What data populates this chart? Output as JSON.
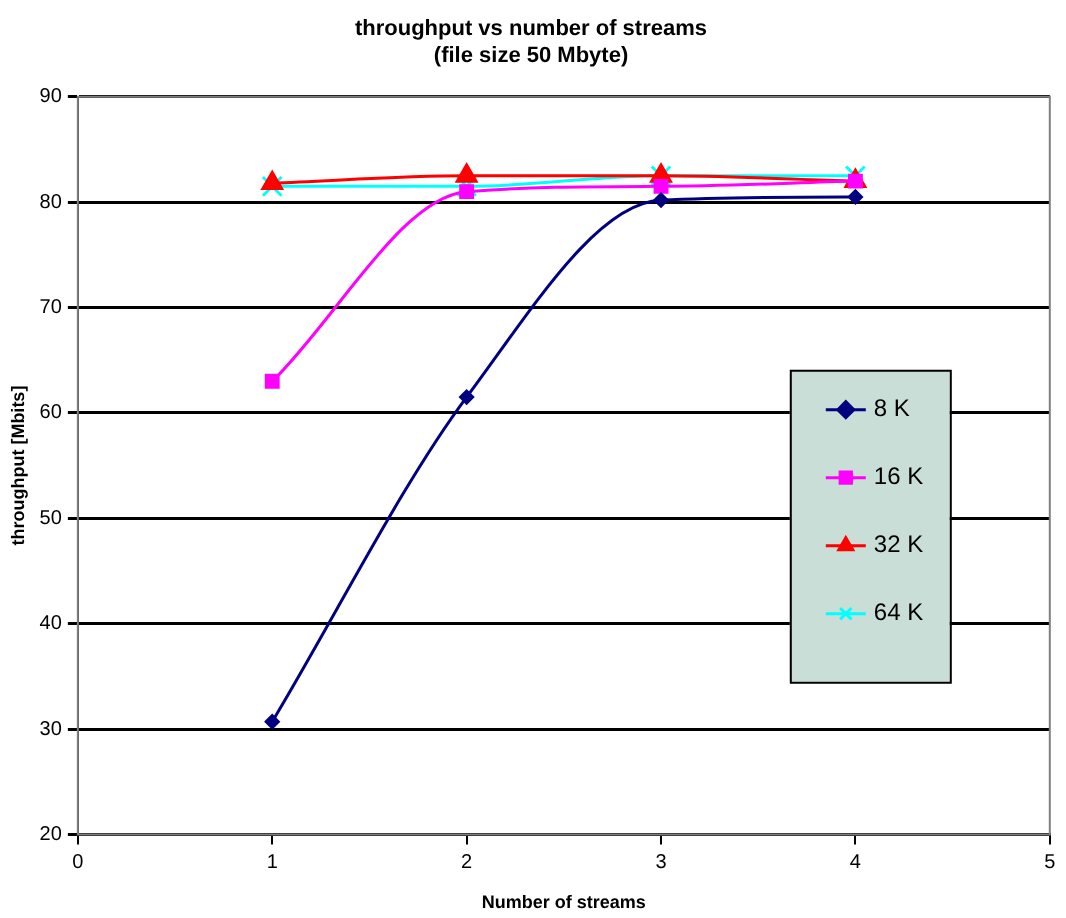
{
  "chart_data": {
    "type": "line",
    "title": "throughput vs number of streams",
    "subtitle": "(file size 50 Mbyte)",
    "xlabel": "Number of streams",
    "ylabel": "throughput [Mbits]",
    "x": [
      1,
      2,
      3,
      4
    ],
    "series": [
      {
        "name": "8 K",
        "color": "#000080",
        "marker": "diamond",
        "values": [
          30.7,
          61.5,
          80.2,
          80.5
        ]
      },
      {
        "name": "16 K",
        "color": "#ff00ff",
        "marker": "square",
        "values": [
          63,
          81,
          81.5,
          82
        ]
      },
      {
        "name": "32 K",
        "color": "#ff0000",
        "marker": "triangle",
        "values": [
          81.8,
          82.5,
          82.5,
          82
        ]
      },
      {
        "name": "64 K",
        "color": "#00ffff",
        "marker": "cross",
        "values": [
          81.5,
          81.5,
          82.5,
          82.5
        ]
      }
    ],
    "xlim": [
      0,
      5
    ],
    "xticks": [
      0,
      1,
      2,
      3,
      4,
      5
    ],
    "ylim": [
      20,
      90
    ],
    "yticks": [
      20,
      30,
      40,
      50,
      60,
      70,
      80,
      90
    ],
    "grid": "y",
    "legend": "right"
  }
}
